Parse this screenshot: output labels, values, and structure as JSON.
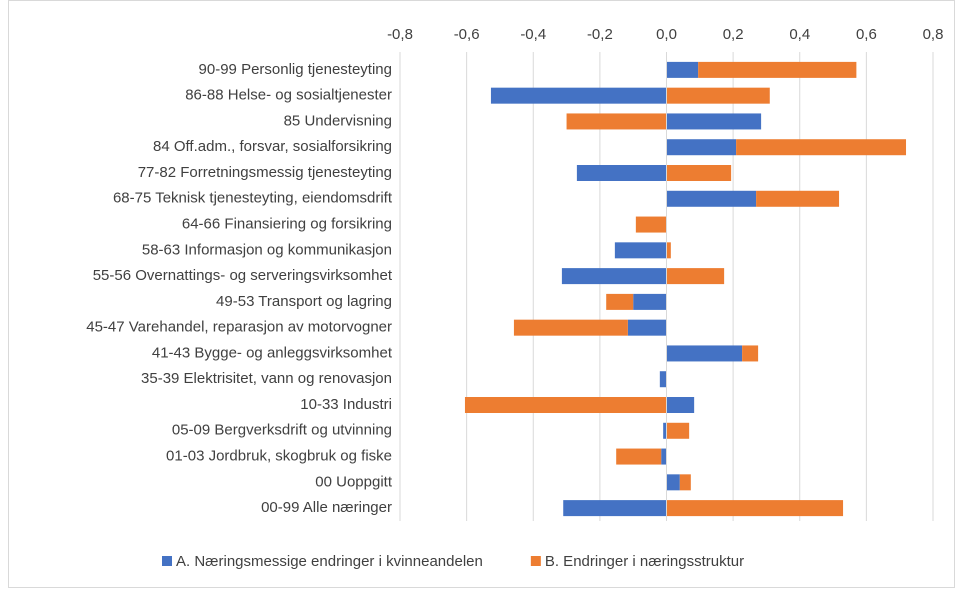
{
  "chart_data": {
    "type": "bar",
    "orientation": "horizontal",
    "stacked": true,
    "categories": [
      "90-99 Personlig tjenesteyting",
      "86-88 Helse- og sosialtjenester",
      "85 Undervisning",
      "84 Off.adm., forsvar, sosialforsikring",
      "77-82 Forretningsmessig tjenesteyting",
      "68-75 Teknisk tjenesteyting, eiendomsdrift",
      "64-66 Finansiering og forsikring",
      "58-63 Informasjon og kommunikasjon",
      "55-56 Overnattings- og serveringsvirksomhet",
      "49-53 Transport og lagring",
      "45-47 Varehandel, reparasjon av motorvogner",
      "41-43 Bygge- og anleggsvirksomhet",
      "35-39 Elektrisitet, vann og renovasjon",
      "10-33 Industri",
      "05-09 Bergverksdrift og utvinning",
      "01-03 Jordbruk, skogbruk og fiske",
      "00 Uoppgitt",
      "00-99 Alle næringer"
    ],
    "series": [
      {
        "name": "A. Næringsmessige endringer i kvinneandelen",
        "color": "#4472c4",
        "values": [
          0.095,
          -0.527,
          0.284,
          0.209,
          -0.269,
          0.269,
          0,
          -0.155,
          -0.314,
          -0.1,
          -0.116,
          0.227,
          -0.02,
          0.083,
          -0.01,
          -0.016,
          0.04,
          -0.31
        ]
      },
      {
        "name": "B. Endringer i næringsstruktur",
        "color": "#ed7d31",
        "values": [
          0.475,
          0.31,
          -0.3,
          0.51,
          0.194,
          0.249,
          -0.092,
          0.013,
          0.173,
          -0.081,
          -0.342,
          0.048,
          0,
          -0.605,
          0.068,
          -0.135,
          0.033,
          0.53
        ]
      }
    ],
    "xlim": [
      -0.8,
      0.8
    ],
    "xticks": [
      {
        "value": -0.8,
        "label": "-0,8"
      },
      {
        "value": -0.6,
        "label": "-0,6"
      },
      {
        "value": -0.4,
        "label": "-0,4"
      },
      {
        "value": -0.2,
        "label": "-0,2"
      },
      {
        "value": 0,
        "label": "0,0"
      },
      {
        "value": 0.2,
        "label": "0,2"
      },
      {
        "value": 0.4,
        "label": "0,4"
      },
      {
        "value": 0.6,
        "label": "0,6"
      },
      {
        "value": 0.8,
        "label": "0,8"
      }
    ],
    "grid": true,
    "legend": "bottom"
  }
}
